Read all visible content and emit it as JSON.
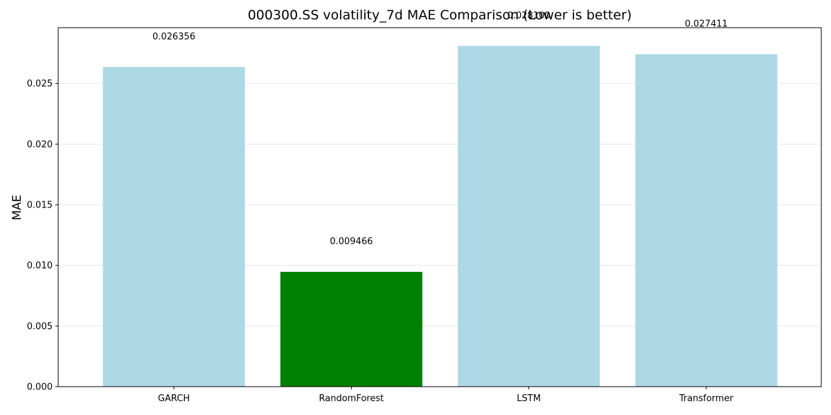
{
  "chart_data": {
    "type": "bar",
    "title": "000300.SS volatility_7d MAE Comparison (Lower is better)",
    "xlabel": "",
    "ylabel": "MAE",
    "categories": [
      "GARCH",
      "RandomForest",
      "LSTM",
      "Transformer"
    ],
    "values": [
      0.026356,
      0.009466,
      0.0281,
      0.027411
    ],
    "value_labels": [
      "0.026356",
      "0.009466",
      "0.028100",
      "0.027411"
    ],
    "ylim": [
      0,
      0.0296
    ],
    "yticks": [
      0.0,
      0.005,
      0.01,
      0.015,
      0.02,
      0.025
    ],
    "ytick_labels": [
      "0.000",
      "0.005",
      "0.010",
      "0.015",
      "0.020",
      "0.025"
    ],
    "grid": true,
    "legend": "none",
    "colors": {
      "default_bar": "#add8e6",
      "best_bar": "#008000",
      "grid": "#e6e6e6",
      "axis": "#000000"
    },
    "highlight_index": 1
  }
}
